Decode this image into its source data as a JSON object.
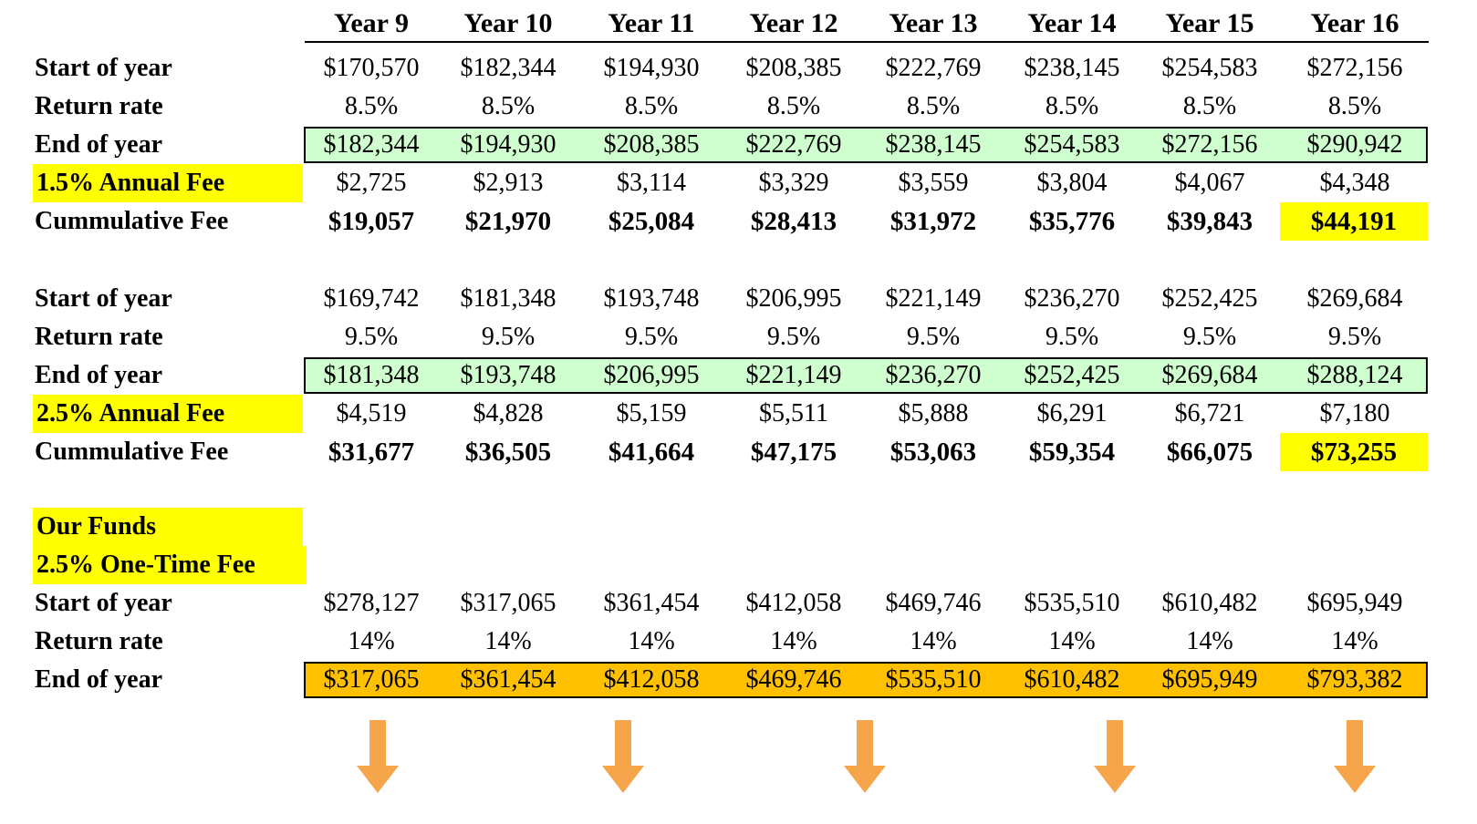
{
  "years": [
    "Year 9",
    "Year 10",
    "Year 11",
    "Year 12",
    "Year 13",
    "Year 14",
    "Year 15",
    "Year 16"
  ],
  "section1": {
    "start_label": "Start of year",
    "start": [
      "$170,570",
      "$182,344",
      "$194,930",
      "$208,385",
      "$222,769",
      "$238,145",
      "$254,583",
      "$272,156"
    ],
    "rate_label": "Return rate",
    "rate": [
      "8.5%",
      "8.5%",
      "8.5%",
      "8.5%",
      "8.5%",
      "8.5%",
      "8.5%",
      "8.5%"
    ],
    "end_label": "End of year",
    "end": [
      "$182,344",
      "$194,930",
      "$208,385",
      "$222,769",
      "$238,145",
      "$254,583",
      "$272,156",
      "$290,942"
    ],
    "fee_label": "1.5%  Annual Fee",
    "fee": [
      "$2,725",
      "$2,913",
      "$3,114",
      "$3,329",
      "$3,559",
      "$3,804",
      "$4,067",
      "$4,348"
    ],
    "cum_label": "Cummulative Fee",
    "cum": [
      "$19,057",
      "$21,970",
      "$25,084",
      "$28,413",
      "$31,972",
      "$35,776",
      "$39,843",
      "$44,191"
    ]
  },
  "section2": {
    "start_label": "Start of year",
    "start": [
      "$169,742",
      "$181,348",
      "$193,748",
      "$206,995",
      "$221,149",
      "$236,270",
      "$252,425",
      "$269,684"
    ],
    "rate_label": "Return rate",
    "rate": [
      "9.5%",
      "9.5%",
      "9.5%",
      "9.5%",
      "9.5%",
      "9.5%",
      "9.5%",
      "9.5%"
    ],
    "end_label": "End of year",
    "end": [
      "$181,348",
      "$193,748",
      "$206,995",
      "$221,149",
      "$236,270",
      "$252,425",
      "$269,684",
      "$288,124"
    ],
    "fee_label": "2.5% Annual Fee",
    "fee": [
      "$4,519",
      "$4,828",
      "$5,159",
      "$5,511",
      "$5,888",
      "$6,291",
      "$6,721",
      "$7,180"
    ],
    "cum_label": "Cummulative Fee",
    "cum": [
      "$31,677",
      "$36,505",
      "$41,664",
      "$47,175",
      "$53,063",
      "$59,354",
      "$66,075",
      "$73,255"
    ]
  },
  "section3": {
    "title1": "Our Funds",
    "title2": "2.5% One-Time Fee",
    "start_label": "Start of year",
    "start": [
      "$278,127",
      "$317,065",
      "$361,454",
      "$412,058",
      "$469,746",
      "$535,510",
      "$610,482",
      "$695,949"
    ],
    "rate_label": "Return rate",
    "rate": [
      "14%",
      "14%",
      "14%",
      "14%",
      "14%",
      "14%",
      "14%",
      "14%"
    ],
    "end_label": "End of year",
    "end": [
      "$317,065",
      "$361,454",
      "$412,058",
      "$469,746",
      "$535,510",
      "$610,482",
      "$695,949",
      "$793,382"
    ]
  },
  "colors": {
    "highlight": "#ffff00",
    "green_band": "#cfffcf",
    "orange_band": "#ffc000",
    "arrow": "#f7a54a"
  }
}
